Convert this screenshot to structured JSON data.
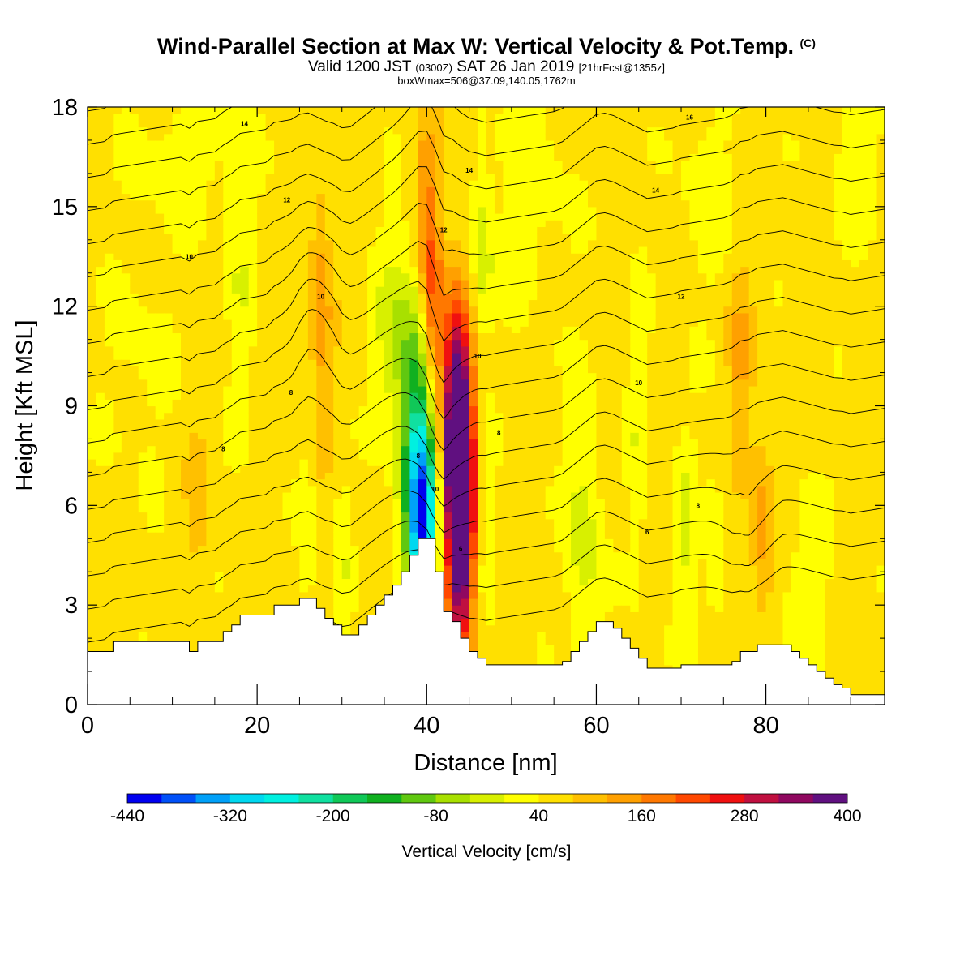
{
  "header": {
    "title": "Wind-Parallel Section at Max W: Vertical Velocity & Pot.Temp.",
    "title_suffix": "(C)",
    "valid_prefix": "Valid 1200 JST",
    "valid_zulu": "(0300Z)",
    "valid_date": "SAT 26 Jan 2019",
    "forecast_info": "[21hrFcst@1355z]",
    "box_info": "boxWmax=506@37.09,140.05,1762m"
  },
  "chart_data": {
    "type": "heatmap",
    "xlabel": "Distance [nm]",
    "ylabel": "Height [Kft MSL]",
    "xlim": [
      0,
      94
    ],
    "ylim": [
      0,
      18
    ],
    "x_ticks": [
      "0",
      "20",
      "40",
      "60",
      "80"
    ],
    "y_ticks": [
      "0",
      "3",
      "6",
      "9",
      "12",
      "15",
      "18"
    ],
    "colorbar": {
      "label": "Vertical Velocity [cm/s]",
      "tick_labels": [
        "-440",
        "-320",
        "-200",
        "-80",
        "40",
        "160",
        "280",
        "400"
      ],
      "colors": [
        "#0000f0",
        "#0050f8",
        "#00a0f8",
        "#00d8f0",
        "#00f0e0",
        "#10e0a0",
        "#10c858",
        "#10b020",
        "#60c810",
        "#a8e000",
        "#d8f000",
        "#ffff00",
        "#ffe000",
        "#ffc000",
        "#ffa000",
        "#ff7800",
        "#ff4800",
        "#f01010",
        "#c01040",
        "#900860",
        "#601080"
      ]
    },
    "terrain_kft": [
      1.6,
      1.6,
      1.6,
      1.9,
      1.9,
      1.9,
      1.9,
      1.9,
      1.9,
      1.9,
      1.9,
      1.9,
      1.6,
      1.9,
      1.9,
      1.9,
      2.2,
      2.4,
      2.7,
      2.7,
      2.7,
      2.7,
      3.0,
      3.0,
      3.0,
      3.2,
      3.2,
      2.9,
      2.6,
      2.4,
      2.1,
      2.1,
      2.4,
      2.7,
      3.0,
      3.3,
      3.6,
      4.0,
      4.5,
      5.0,
      5.0,
      4.0,
      2.8,
      2.5,
      2.0,
      1.6,
      1.4,
      1.2,
      1.2,
      1.2,
      1.2,
      1.2,
      1.2,
      1.2,
      1.2,
      1.2,
      1.3,
      1.6,
      1.9,
      2.2,
      2.5,
      2.5,
      2.3,
      2.0,
      1.7,
      1.4,
      1.1,
      1.1,
      1.1,
      1.1,
      1.2,
      1.2,
      1.2,
      1.2,
      1.2,
      1.2,
      1.3,
      1.6,
      1.6,
      1.8,
      1.8,
      1.8,
      1.8,
      1.6,
      1.4,
      1.2,
      1.0,
      0.8,
      0.6,
      0.5,
      0.3,
      0.3,
      0.3,
      0.3,
      0.3
    ],
    "w_features": [
      {
        "x": 39.5,
        "y": 5.5,
        "sx": 1.2,
        "sy": 2.5,
        "amp": -420
      },
      {
        "x": 38.5,
        "y": 8.8,
        "sx": 1.4,
        "sy": 3.2,
        "amp": -130
      },
      {
        "x": 36.0,
        "y": 11.0,
        "sx": 1.6,
        "sy": 2.2,
        "amp": -80
      },
      {
        "x": 44.0,
        "y": 6.2,
        "sx": 1.2,
        "sy": 3.0,
        "amp": 480
      },
      {
        "x": 43.3,
        "y": 9.0,
        "sx": 1.0,
        "sy": 2.4,
        "amp": 200
      },
      {
        "x": 40.8,
        "y": 11.5,
        "sx": 0.9,
        "sy": 2.0,
        "amp": 160
      },
      {
        "x": 40.0,
        "y": 15.0,
        "sx": 1.0,
        "sy": 1.8,
        "amp": 110
      },
      {
        "x": 46.5,
        "y": 13.5,
        "sx": 0.9,
        "sy": 2.0,
        "amp": -80
      },
      {
        "x": 46.5,
        "y": 5.5,
        "sx": 1.0,
        "sy": 2.5,
        "amp": -50
      },
      {
        "x": 27.5,
        "y": 12.0,
        "sx": 0.9,
        "sy": 2.5,
        "amp": 90
      },
      {
        "x": 18.0,
        "y": 13.0,
        "sx": 1.2,
        "sy": 3.5,
        "amp": -45
      },
      {
        "x": 26.0,
        "y": 5.0,
        "sx": 0.8,
        "sy": 2.0,
        "amp": -50
      },
      {
        "x": 30.0,
        "y": 4.5,
        "sx": 0.8,
        "sy": 2.0,
        "amp": -50
      },
      {
        "x": 58.5,
        "y": 5.0,
        "sx": 1.5,
        "sy": 3.0,
        "amp": -80
      },
      {
        "x": 65.0,
        "y": 8.0,
        "sx": 1.0,
        "sy": 3.5,
        "amp": -45
      },
      {
        "x": 70.5,
        "y": 5.0,
        "sx": 1.0,
        "sy": 2.5,
        "amp": -60
      },
      {
        "x": 74.0,
        "y": 4.5,
        "sx": 0.8,
        "sy": 2.0,
        "amp": -60
      },
      {
        "x": 77.0,
        "y": 10.5,
        "sx": 1.0,
        "sy": 2.0,
        "amp": 70
      },
      {
        "x": 79.5,
        "y": 5.5,
        "sx": 1.0,
        "sy": 2.0,
        "amp": 80
      },
      {
        "x": 85.0,
        "y": 3.5,
        "sx": 2.0,
        "sy": 2.0,
        "amp": -50
      },
      {
        "x": 91.0,
        "y": 16.5,
        "sx": 2.5,
        "sy": 2.0,
        "amp": -40
      },
      {
        "x": 12.0,
        "y": 16.5,
        "sx": 5.0,
        "sy": 1.5,
        "amp": -40
      },
      {
        "x": 52.0,
        "y": 15.5,
        "sx": 3.5,
        "sy": 2.5,
        "amp": -40
      },
      {
        "x": 73.0,
        "y": 15.5,
        "sx": 2.5,
        "sy": 2.5,
        "amp": -35
      },
      {
        "x": 6.0,
        "y": 10.0,
        "sx": 3.0,
        "sy": 2.5,
        "amp": -30
      },
      {
        "x": 13.0,
        "y": 6.0,
        "sx": 1.0,
        "sy": 1.5,
        "amp": 45
      }
    ],
    "theta_contour_labels": [
      {
        "text": "14",
        "x": 18.5,
        "y": 17.5
      },
      {
        "text": "16",
        "x": 71.0,
        "y": 17.7
      },
      {
        "text": "14",
        "x": 45.0,
        "y": 16.1
      },
      {
        "text": "14",
        "x": 67.0,
        "y": 15.5
      },
      {
        "text": "12",
        "x": 23.5,
        "y": 15.2
      },
      {
        "text": "12",
        "x": 42.0,
        "y": 14.3
      },
      {
        "text": "10",
        "x": 12.0,
        "y": 13.5
      },
      {
        "text": "10",
        "x": 27.5,
        "y": 12.3
      },
      {
        "text": "12",
        "x": 70.0,
        "y": 12.3
      },
      {
        "text": "10",
        "x": 46.0,
        "y": 10.5
      },
      {
        "text": "10",
        "x": 65.0,
        "y": 9.7
      },
      {
        "text": "8",
        "x": 24.0,
        "y": 9.4
      },
      {
        "text": "8",
        "x": 48.5,
        "y": 8.2
      },
      {
        "text": "8",
        "x": 16.0,
        "y": 7.7
      },
      {
        "text": "8",
        "x": 39.0,
        "y": 7.5
      },
      {
        "text": "10",
        "x": 41.0,
        "y": 6.5
      },
      {
        "text": "8",
        "x": 72.0,
        "y": 6.0
      },
      {
        "text": "6",
        "x": 66.0,
        "y": 5.2
      },
      {
        "text": "6",
        "x": 44.0,
        "y": 4.7
      }
    ]
  }
}
